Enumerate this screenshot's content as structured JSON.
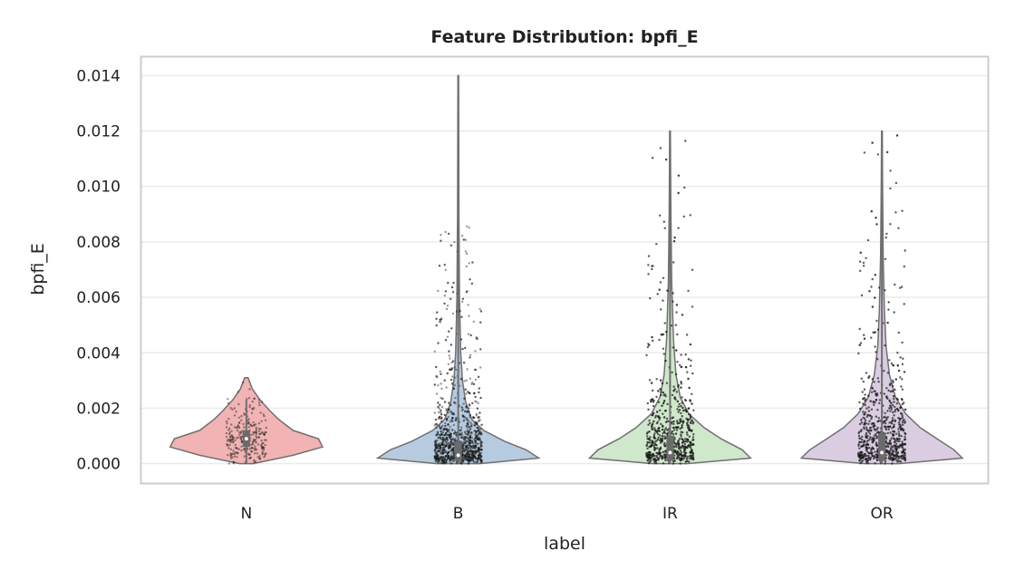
{
  "chart_data": {
    "type": "violin",
    "title": "Feature Distribution: bpfi_E",
    "xlabel": "label",
    "ylabel": "bpfi_E",
    "ylim": [
      -0.0007,
      0.0147
    ],
    "yticks": [
      "0.000",
      "0.002",
      "0.004",
      "0.006",
      "0.008",
      "0.010",
      "0.012",
      "0.014"
    ],
    "grid": true,
    "categories": [
      "N",
      "B",
      "IR",
      "OR"
    ],
    "colors": [
      "#f1b3b3",
      "#b6cbdf",
      "#cfe7cb",
      "#dacde2"
    ],
    "series": [
      {
        "category": "N",
        "max": 0.0031,
        "profile": [
          [
            0.0,
            0.08
          ],
          [
            0.0003,
            0.55
          ],
          [
            0.0006,
            0.9
          ],
          [
            0.0009,
            0.85
          ],
          [
            0.0012,
            0.55
          ],
          [
            0.0016,
            0.38
          ],
          [
            0.0019,
            0.28
          ],
          [
            0.0023,
            0.16
          ],
          [
            0.0027,
            0.07
          ],
          [
            0.0031,
            0.02
          ]
        ],
        "points_range": [
          0.0,
          0.003
        ],
        "points_density": "low",
        "box": {
          "q1": 0.0006,
          "median": 0.0009,
          "q3": 0.0012,
          "whisker_low": 0.0,
          "whisker_high": 0.0023
        }
      },
      {
        "category": "B",
        "max": 0.014,
        "profile": [
          [
            0.0,
            0.25
          ],
          [
            0.0002,
            0.95
          ],
          [
            0.0005,
            0.8
          ],
          [
            0.0008,
            0.55
          ],
          [
            0.0012,
            0.3
          ],
          [
            0.0016,
            0.16
          ],
          [
            0.0022,
            0.09
          ],
          [
            0.003,
            0.05
          ],
          [
            0.004,
            0.03
          ],
          [
            0.006,
            0.015
          ],
          [
            0.009,
            0.008
          ],
          [
            0.014,
            0.004
          ]
        ],
        "points_range": [
          0.0,
          0.0086
        ],
        "points_density": "high",
        "box": {
          "q1": 0.0001,
          "median": 0.0003,
          "q3": 0.0008,
          "whisker_low": 0.0,
          "whisker_high": 0.014
        }
      },
      {
        "category": "IR",
        "max": 0.012,
        "profile": [
          [
            0.0,
            0.2
          ],
          [
            0.0002,
            0.95
          ],
          [
            0.0005,
            0.85
          ],
          [
            0.0009,
            0.6
          ],
          [
            0.0013,
            0.4
          ],
          [
            0.0018,
            0.22
          ],
          [
            0.0024,
            0.12
          ],
          [
            0.0032,
            0.07
          ],
          [
            0.0045,
            0.04
          ],
          [
            0.0065,
            0.02
          ],
          [
            0.009,
            0.01
          ],
          [
            0.012,
            0.004
          ]
        ],
        "points_range": [
          0.0,
          0.0118
        ],
        "points_density": "high",
        "box": {
          "q1": 0.0001,
          "median": 0.0004,
          "q3": 0.001,
          "whisker_low": 0.0,
          "whisker_high": 0.012
        }
      },
      {
        "category": "OR",
        "max": 0.012,
        "profile": [
          [
            0.0,
            0.2
          ],
          [
            0.0002,
            0.95
          ],
          [
            0.0005,
            0.85
          ],
          [
            0.0009,
            0.65
          ],
          [
            0.0013,
            0.45
          ],
          [
            0.0018,
            0.28
          ],
          [
            0.0024,
            0.16
          ],
          [
            0.0032,
            0.09
          ],
          [
            0.0042,
            0.05
          ],
          [
            0.0055,
            0.03
          ],
          [
            0.0075,
            0.015
          ],
          [
            0.01,
            0.008
          ],
          [
            0.012,
            0.004
          ]
        ],
        "points_range": [
          0.0,
          0.012
        ],
        "points_density": "high",
        "box": {
          "q1": 0.0001,
          "median": 0.0004,
          "q3": 0.0011,
          "whisker_low": 0.0,
          "whisker_high": 0.012
        }
      }
    ]
  }
}
